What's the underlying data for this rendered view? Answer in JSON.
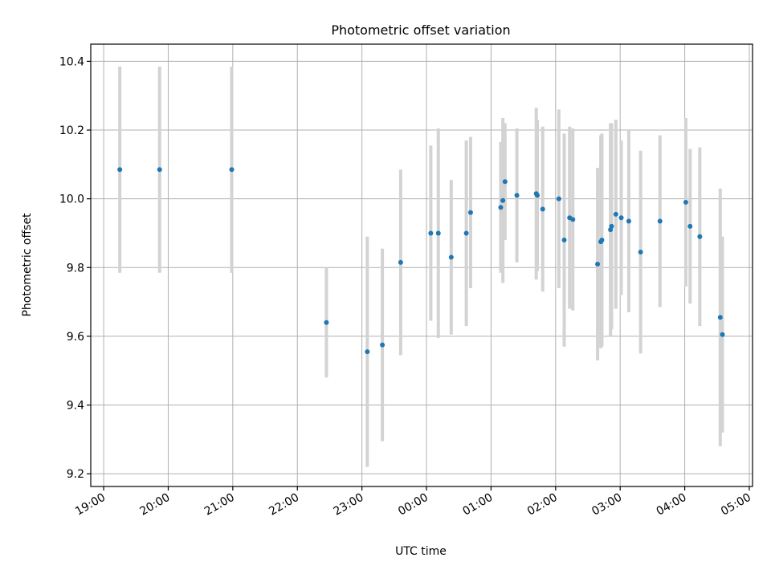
{
  "chart_data": {
    "type": "scatter",
    "title": "Photometric offset variation",
    "xlabel": "UTC time",
    "ylabel": "Photometric offset",
    "x_range": [
      "19:00",
      "05:00"
    ],
    "x_axis_start": "18:48",
    "x_axis_end": "05:03",
    "ylim": [
      9.163,
      10.45
    ],
    "grid": true,
    "x_ticks": [
      "19:00",
      "20:00",
      "21:00",
      "22:00",
      "23:00",
      "00:00",
      "01:00",
      "02:00",
      "03:00",
      "04:00",
      "05:00"
    ],
    "y_ticks": [
      9.2,
      9.4,
      9.6,
      9.8,
      10.0,
      10.2,
      10.4
    ],
    "y_tick_labels": [
      "9.2",
      "9.4",
      "9.6",
      "9.8",
      "10.0",
      "10.2",
      "10.4"
    ],
    "point_color": "#1f77b4",
    "errorbar_color": "#d3d3d3",
    "points": [
      {
        "t": "19:15",
        "y": 10.085,
        "err": 0.3
      },
      {
        "t": "19:52",
        "y": 10.085,
        "err": 0.3
      },
      {
        "t": "20:59",
        "y": 10.085,
        "err": 0.3
      },
      {
        "t": "22:27",
        "y": 9.64,
        "err": 0.16
      },
      {
        "t": "23:05",
        "y": 9.555,
        "err": 0.335
      },
      {
        "t": "23:19",
        "y": 9.575,
        "err": 0.28
      },
      {
        "t": "23:36",
        "y": 9.815,
        "err": 0.27
      },
      {
        "t": "00:04",
        "y": 9.9,
        "err": 0.255
      },
      {
        "t": "00:11",
        "y": 9.9,
        "err": 0.305
      },
      {
        "t": "00:23",
        "y": 9.83,
        "err": 0.225
      },
      {
        "t": "00:37",
        "y": 9.9,
        "err": 0.27
      },
      {
        "t": "00:41",
        "y": 9.96,
        "err": 0.22
      },
      {
        "t": "01:09",
        "y": 9.975,
        "err": 0.19
      },
      {
        "t": "01:11",
        "y": 9.995,
        "err": 0.24
      },
      {
        "t": "01:13",
        "y": 10.05,
        "err": 0.17
      },
      {
        "t": "01:24",
        "y": 10.01,
        "err": 0.195
      },
      {
        "t": "01:42",
        "y": 10.015,
        "err": 0.25
      },
      {
        "t": "01:43",
        "y": 10.01,
        "err": 0.22
      },
      {
        "t": "01:48",
        "y": 9.97,
        "err": 0.24
      },
      {
        "t": "02:03",
        "y": 10.0,
        "err": 0.26
      },
      {
        "t": "02:08",
        "y": 9.88,
        "err": 0.31
      },
      {
        "t": "02:13",
        "y": 9.945,
        "err": 0.265
      },
      {
        "t": "02:16",
        "y": 9.94,
        "err": 0.265
      },
      {
        "t": "02:39",
        "y": 9.81,
        "err": 0.28
      },
      {
        "t": "02:42",
        "y": 9.875,
        "err": 0.31
      },
      {
        "t": "02:43",
        "y": 9.88,
        "err": 0.31
      },
      {
        "t": "02:51",
        "y": 9.91,
        "err": 0.31
      },
      {
        "t": "02:52",
        "y": 9.92,
        "err": 0.3
      },
      {
        "t": "02:56",
        "y": 9.955,
        "err": 0.275
      },
      {
        "t": "03:01",
        "y": 9.945,
        "err": 0.225
      },
      {
        "t": "03:08",
        "y": 9.935,
        "err": 0.265
      },
      {
        "t": "03:19",
        "y": 9.845,
        "err": 0.295
      },
      {
        "t": "03:37",
        "y": 9.935,
        "err": 0.25
      },
      {
        "t": "04:01",
        "y": 9.99,
        "err": 0.245
      },
      {
        "t": "04:05",
        "y": 9.92,
        "err": 0.225
      },
      {
        "t": "04:14",
        "y": 9.89,
        "err": 0.26
      },
      {
        "t": "04:33",
        "y": 9.655,
        "err": 0.375
      },
      {
        "t": "04:35",
        "y": 9.605,
        "err": 0.285
      }
    ]
  }
}
